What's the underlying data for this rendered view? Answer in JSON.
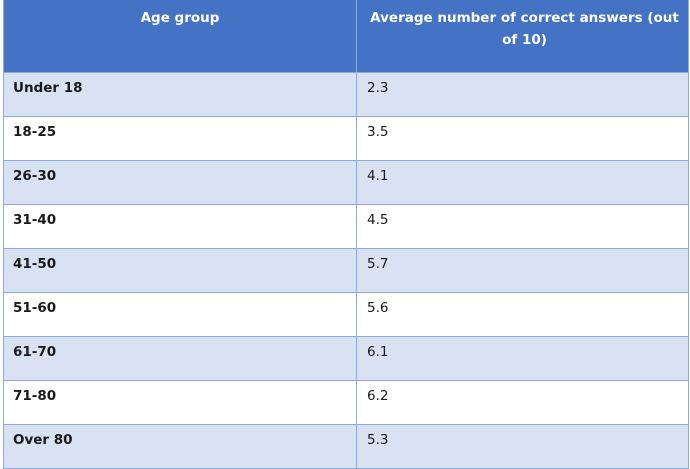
{
  "table": {
    "headers": {
      "age_group": "Age group",
      "average": "Average number of correct answers (out of 10)"
    },
    "rows": [
      {
        "age": "Under 18",
        "value": "2.3"
      },
      {
        "age": "18-25",
        "value": "3.5"
      },
      {
        "age": "26-30",
        "value": "4.1"
      },
      {
        "age": "31-40",
        "value": "4.5"
      },
      {
        "age": "41-50",
        "value": "5.7"
      },
      {
        "age": "51-60",
        "value": "5.6"
      },
      {
        "age": "61-70",
        "value": "6.1"
      },
      {
        "age": "71-80",
        "value": "6.2"
      },
      {
        "age": "Over 80",
        "value": "5.3"
      }
    ],
    "colors": {
      "header_bg": "#4472c4",
      "band_bg": "#d9e2f3",
      "border": "#8eaadb"
    }
  }
}
